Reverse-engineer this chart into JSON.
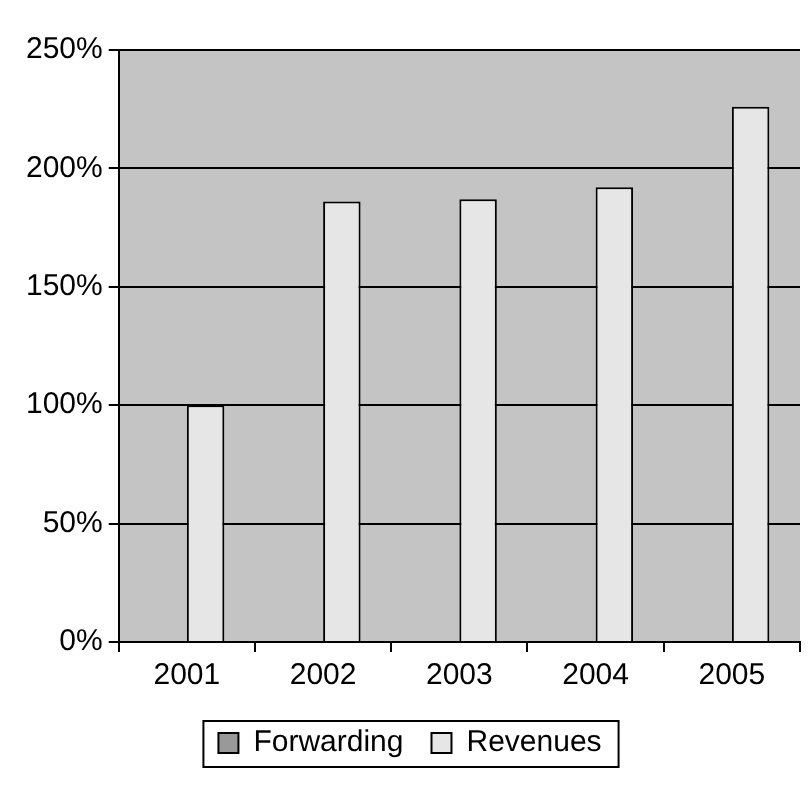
{
  "chart_data": {
    "type": "bar",
    "categories": [
      "2001",
      "2002",
      "2003",
      "2004",
      "2005"
    ],
    "series": [
      {
        "name": "Forwarding",
        "color": "#999999",
        "values": [
          null,
          null,
          null,
          null,
          null
        ]
      },
      {
        "name": "Revenues",
        "color": "#e6e6e6",
        "values": [
          100,
          186,
          187,
          192,
          226
        ]
      }
    ],
    "ylim": [
      0,
      250
    ],
    "yticks": [
      {
        "value": 0,
        "label": "0%"
      },
      {
        "value": 50,
        "label": "50%"
      },
      {
        "value": 100,
        "label": "100%"
      },
      {
        "value": 150,
        "label": "150%"
      },
      {
        "value": 200,
        "label": "200%"
      },
      {
        "value": 250,
        "label": "250%"
      }
    ],
    "grid": "y",
    "legend": "bottom"
  }
}
